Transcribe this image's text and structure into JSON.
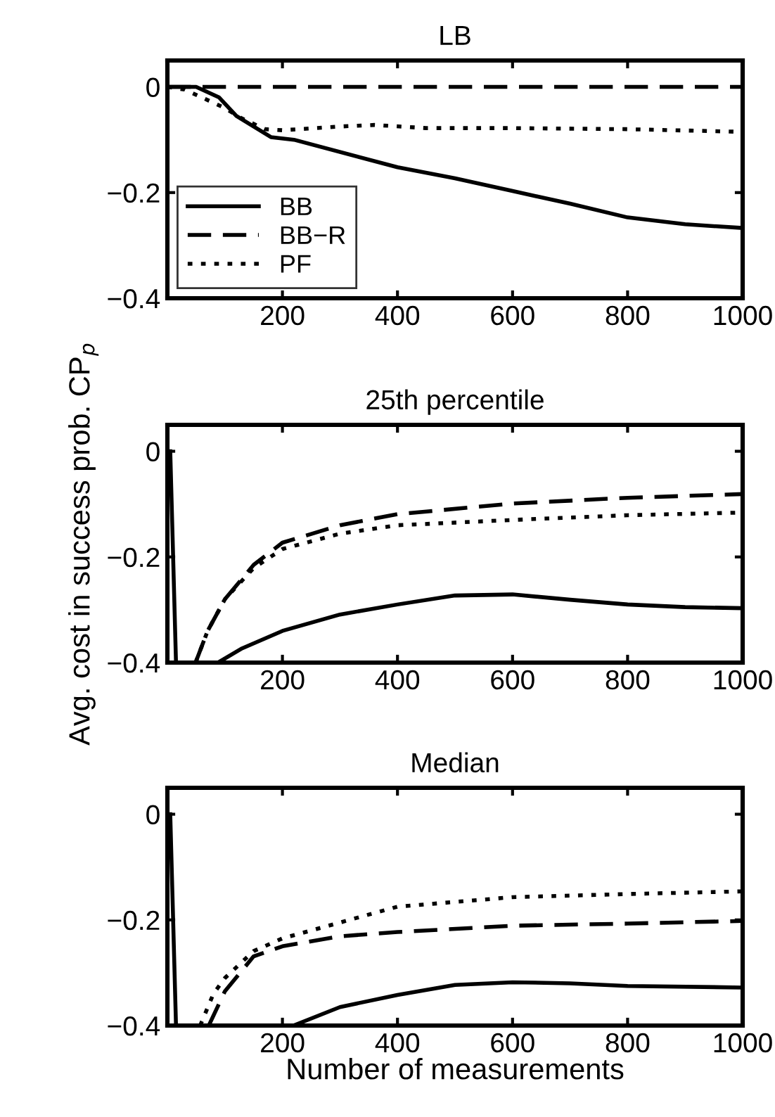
{
  "chart_data": [
    {
      "type": "line",
      "title": "LB",
      "xlim": [
        0,
        1000
      ],
      "ylim": [
        -0.4,
        0.05
      ],
      "xticks": [
        200,
        400,
        600,
        800,
        1000
      ],
      "yticks": [
        -0.4,
        -0.2,
        0
      ],
      "grid": false,
      "legend": "bottom left",
      "series": [
        {
          "name": "BB",
          "color": "#000000",
          "line_style": "solid",
          "x": [
            0,
            50,
            60,
            80,
            90,
            120,
            150,
            180,
            220,
            400,
            500,
            600,
            700,
            800,
            900,
            1000
          ],
          "values": [
            0,
            0,
            -0.005,
            -0.015,
            -0.02,
            -0.055,
            -0.075,
            -0.095,
            -0.1,
            -0.152,
            -0.173,
            -0.197,
            -0.221,
            -0.247,
            -0.26,
            -0.267
          ]
        },
        {
          "name": "BB−R",
          "color": "#000000",
          "line_style": "dashed",
          "x": [
            0,
            1000
          ],
          "values": [
            0,
            0
          ]
        },
        {
          "name": "PF",
          "color": "#000000",
          "line_style": "dotted",
          "x": [
            0,
            30,
            60,
            100,
            130,
            170,
            200,
            300,
            360,
            450,
            600,
            800,
            1000
          ],
          "values": [
            0,
            -0.005,
            -0.02,
            -0.04,
            -0.06,
            -0.08,
            -0.082,
            -0.075,
            -0.072,
            -0.078,
            -0.078,
            -0.08,
            -0.085
          ]
        }
      ]
    },
    {
      "type": "line",
      "title": "25th percentile",
      "ylabel": "Avg. cost in success prob. CP$_{p}$",
      "xlim": [
        0,
        1000
      ],
      "ylim": [
        -0.4,
        0.05
      ],
      "xticks": [
        200,
        400,
        600,
        800,
        1000
      ],
      "yticks": [
        -0.4,
        -0.2,
        0
      ],
      "grid": false,
      "series": [
        {
          "color": "#000000",
          "line_style": "solid",
          "x": [
            5,
            15,
            88,
            130,
            200,
            300,
            400,
            500,
            600,
            700,
            800,
            900,
            1000
          ],
          "values": [
            0,
            -0.4,
            -0.4,
            -0.373,
            -0.34,
            -0.309,
            -0.29,
            -0.273,
            -0.271,
            -0.281,
            -0.29,
            -0.295,
            -0.297
          ]
        },
        {
          "color": "#000000",
          "line_style": "dashed",
          "x": [
            49,
            70,
            100,
            150,
            200,
            300,
            400,
            600,
            800,
            1000
          ],
          "values": [
            -0.4,
            -0.34,
            -0.28,
            -0.215,
            -0.173,
            -0.14,
            -0.119,
            -0.099,
            -0.088,
            -0.081
          ]
        },
        {
          "color": "#000000",
          "line_style": "dotted",
          "x": [
            49,
            70,
            100,
            150,
            200,
            300,
            400,
            600,
            800,
            1000
          ],
          "values": [
            -0.4,
            -0.34,
            -0.28,
            -0.221,
            -0.185,
            -0.156,
            -0.14,
            -0.13,
            -0.121,
            -0.116
          ]
        }
      ]
    },
    {
      "type": "line",
      "title": "Median",
      "xlabel": "Number of measurements",
      "xlim": [
        0,
        1000
      ],
      "ylim": [
        -0.4,
        0.05
      ],
      "xticks": [
        200,
        400,
        600,
        800,
        1000
      ],
      "yticks": [
        -0.4,
        -0.2,
        0
      ],
      "grid": false,
      "series": [
        {
          "color": "#000000",
          "line_style": "solid",
          "x": [
            5,
            15,
            219,
            300,
            400,
            500,
            600,
            700,
            800,
            1000
          ],
          "values": [
            0,
            -0.4,
            -0.4,
            -0.365,
            -0.342,
            -0.323,
            -0.318,
            -0.32,
            -0.325,
            -0.328
          ]
        },
        {
          "color": "#000000",
          "line_style": "dashed",
          "x": [
            72,
            100,
            150,
            200,
            300,
            400,
            600,
            800,
            1000
          ],
          "values": [
            -0.4,
            -0.335,
            -0.269,
            -0.25,
            -0.231,
            -0.223,
            -0.211,
            -0.207,
            -0.202
          ]
        },
        {
          "color": "#000000",
          "line_style": "dotted",
          "x": [
            57,
            80,
            100,
            150,
            200,
            300,
            400,
            600,
            800,
            1000
          ],
          "values": [
            -0.4,
            -0.34,
            -0.31,
            -0.259,
            -0.235,
            -0.205,
            -0.175,
            -0.157,
            -0.151,
            -0.146
          ]
        }
      ]
    }
  ]
}
